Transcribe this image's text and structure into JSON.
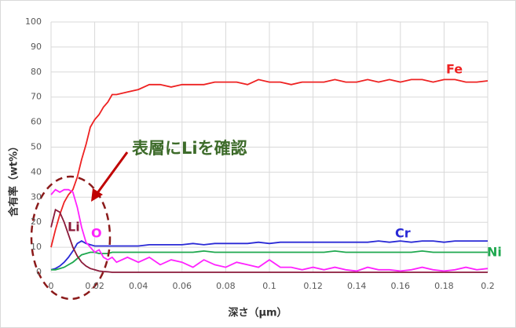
{
  "chart_data": {
    "type": "line",
    "ylabel": "含有率（wt%）",
    "xlabel": "深さ（μm）",
    "annotation": "表層にLiを確認",
    "x": [
      0,
      0.002,
      0.004,
      0.006,
      0.008,
      0.01,
      0.012,
      0.014,
      0.016,
      0.018,
      0.02,
      0.022,
      0.024,
      0.026,
      0.028,
      0.03,
      0.035,
      0.04,
      0.045,
      0.05,
      0.055,
      0.06,
      0.065,
      0.07,
      0.075,
      0.08,
      0.085,
      0.09,
      0.095,
      0.1,
      0.105,
      0.11,
      0.115,
      0.12,
      0.125,
      0.13,
      0.135,
      0.14,
      0.145,
      0.15,
      0.155,
      0.16,
      0.165,
      0.17,
      0.175,
      0.18,
      0.185,
      0.19,
      0.195,
      0.2
    ],
    "series": [
      {
        "name": "Fe",
        "color": "#ee2222",
        "values": [
          10,
          17,
          23,
          28,
          31,
          33,
          38,
          45,
          51,
          58,
          61,
          63,
          66,
          68,
          71,
          71,
          72,
          73,
          75,
          75,
          74,
          75,
          75,
          75,
          76,
          76,
          76,
          75,
          77,
          76,
          76,
          75,
          76,
          76,
          76,
          77,
          76,
          76,
          77,
          76,
          77,
          76,
          77,
          77,
          76,
          77,
          77,
          76,
          76,
          76.5
        ]
      },
      {
        "name": "Cr",
        "color": "#2a2ad6",
        "values": [
          1,
          1.5,
          2.5,
          4,
          6,
          8.5,
          11.5,
          12.5,
          11.5,
          11,
          10.5,
          10.5,
          10.5,
          10.5,
          10.5,
          10.5,
          10.5,
          10.5,
          11,
          11,
          11,
          11,
          11.5,
          11,
          11.5,
          11.5,
          11.5,
          11.5,
          12,
          11.5,
          12,
          12,
          12,
          12,
          12,
          12,
          12,
          12,
          12,
          12.5,
          12,
          12.5,
          12,
          12.5,
          12.5,
          12,
          12.5,
          12.5,
          12.5,
          12.5
        ]
      },
      {
        "name": "Ni",
        "color": "#1fa84f",
        "values": [
          1,
          1,
          1.5,
          2,
          3,
          4,
          5.5,
          7,
          7.5,
          8,
          8,
          7.5,
          7.5,
          7.5,
          8,
          8,
          8,
          8,
          8,
          8,
          8,
          8,
          8,
          8.5,
          8,
          8,
          8,
          8,
          8,
          8,
          8,
          8,
          8,
          8,
          8,
          8.5,
          8,
          8,
          8,
          8,
          8,
          8,
          8,
          8.5,
          8,
          8,
          8,
          8,
          8,
          8
        ]
      },
      {
        "name": "Li",
        "color": "#8b1a3a",
        "values": [
          18,
          25,
          24,
          20,
          15,
          10,
          6.5,
          4,
          2.5,
          1.5,
          1,
          0.5,
          0.3,
          0.2,
          0,
          0,
          0,
          0,
          0,
          0,
          0,
          0,
          0,
          0,
          0,
          0,
          0,
          0,
          0,
          0,
          0,
          0,
          0,
          0,
          0,
          0,
          0,
          0,
          0,
          0,
          0,
          0,
          0,
          0,
          0,
          0,
          0,
          0,
          0,
          0
        ]
      },
      {
        "name": "O",
        "color": "#ff22ff",
        "values": [
          31,
          33,
          32,
          33,
          33,
          32,
          26,
          18,
          12,
          10,
          8,
          9,
          6,
          5,
          6,
          4,
          6,
          4,
          6,
          3,
          5,
          4,
          2,
          5,
          3,
          2,
          4,
          3,
          2,
          5,
          2,
          2,
          1,
          2,
          1,
          2,
          1,
          0.5,
          2,
          1,
          1,
          0.5,
          1,
          2,
          1,
          0.5,
          1,
          2,
          1,
          1.5
        ]
      }
    ],
    "xlim": [
      0,
      0.2
    ],
    "xticks": [
      0,
      0.02,
      0.04,
      0.06,
      0.08,
      0.1,
      0.12,
      0.14,
      0.16,
      0.18,
      0.2
    ],
    "ylim": [
      0,
      100
    ],
    "yticks": [
      0,
      10,
      20,
      30,
      40,
      50,
      60,
      70,
      80,
      90,
      100
    ],
    "grid": true
  }
}
